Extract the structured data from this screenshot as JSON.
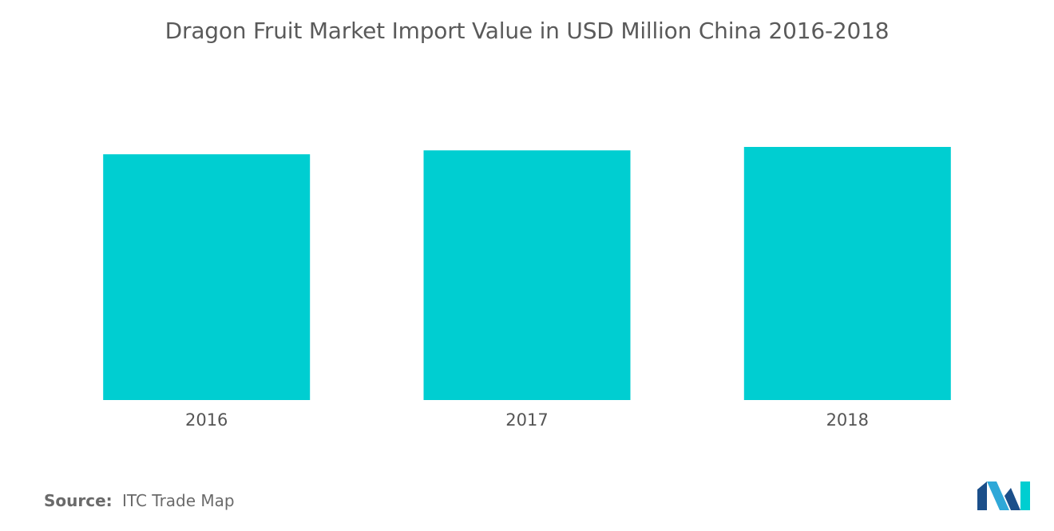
{
  "chart_data": {
    "type": "bar",
    "title": "Dragon Fruit Market Import Value in USD Million China 2016-2018",
    "categories": [
      "2016",
      "2017",
      "2018"
    ],
    "values": [
      100,
      101.6,
      103
    ],
    "ylim": [
      0,
      103
    ],
    "grid": false,
    "xlabel": "",
    "ylabel": "",
    "bar_color": "#00CED1"
  },
  "footer": {
    "source_label": "Source:",
    "source_text": "ITC Trade Map"
  },
  "logo": {
    "icon": "mordor-intelligence-logo",
    "colors": [
      "#1B4F8A",
      "#2FA8D8",
      "#00CED1"
    ]
  }
}
